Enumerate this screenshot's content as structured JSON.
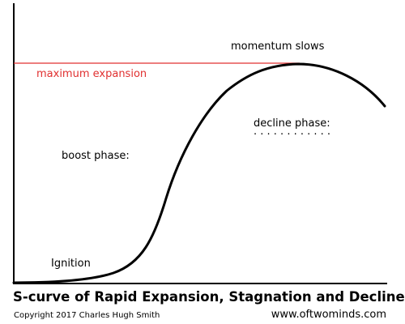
{
  "title": "S-curve of Rapid Expansion, Stagnation and Decline",
  "copyright": "Copyright 2017 Charles Hugh Smith",
  "website": "www.oftwominds.com",
  "labels": {
    "momentum": "momentum slows",
    "max_expansion": "maximum expansion",
    "decline": "decline phase:",
    "boost": "boost phase:",
    "ignition": "Ignition"
  },
  "colors": {
    "curve": "#000000",
    "max_line": "#e03030",
    "max_text": "#e03030",
    "axis": "#000000"
  }
}
